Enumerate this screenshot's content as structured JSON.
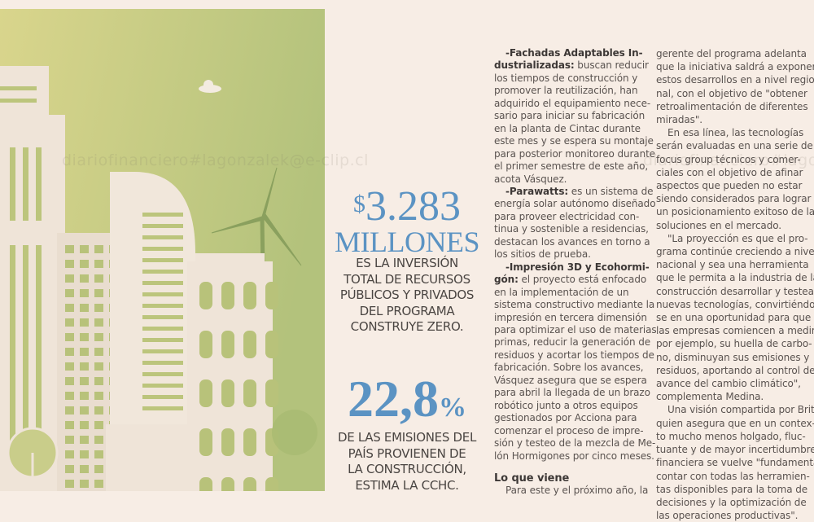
{
  "watermark": "diariofinanciero#lagonzalek@e-clip.cl",
  "illustration": {
    "colors": {
      "background_light": "#d9d58c",
      "background_dark": "#b3c27c",
      "buildings": "#efe4d8",
      "windows": "#b8c27a"
    }
  },
  "stats": [
    {
      "currency": "$",
      "value": "3.283",
      "unit": "MILLONES",
      "caption": [
        "ES LA INVERSIÓN",
        "TOTAL DE RECURSOS",
        "PÚBLICOS Y PRIVADOS",
        "DEL PROGRAMA",
        "CONSTRUYE ZERO."
      ]
    },
    {
      "value": "22,8",
      "unit": "%",
      "caption": [
        "DE LAS EMISIONES DEL",
        "PAÍS PROVIENEN DE",
        "LA CONSTRUCCIÓN,",
        "ESTIMA LA CCHC."
      ]
    }
  ],
  "accent_color": "#5b93c3",
  "columns": [
    [
      {
        "b": "-Fachadas Adaptables In-",
        "t": "",
        "indent": true
      },
      {
        "b": "dustrializadas:",
        "t": " buscan reducir"
      },
      {
        "t": "los tiempos de construcción y"
      },
      {
        "t": "promover la reutilización, han"
      },
      {
        "t": "adquirido el equipamiento nece-"
      },
      {
        "t": "sario para iniciar su fabricación"
      },
      {
        "t": "en la planta de Cintac durante"
      },
      {
        "t": "este mes y se espera su montaje"
      },
      {
        "t": "para posterior monitoreo durante"
      },
      {
        "t": "el primer semestre de este año,"
      },
      {
        "t": "acota Vásquez."
      },
      {
        "b": "-Parawatts:",
        "t": " es un sistema de",
        "indent": true
      },
      {
        "t": "energía solar autónomo diseñado"
      },
      {
        "t": "para proveer electricidad con-"
      },
      {
        "t": "tinua y sostenible a residencias,"
      },
      {
        "t": "destacan los avances en torno a"
      },
      {
        "t": "los sitios de prueba."
      },
      {
        "b": "-Impresión 3D y Ecohormi-",
        "t": "",
        "indent": true
      },
      {
        "b": "gón:",
        "t": " el proyecto está enfocado"
      },
      {
        "t": "en la implementación de un"
      },
      {
        "t": "sistema constructivo mediante la"
      },
      {
        "t": "impresión en tercera dimensión"
      },
      {
        "t": "para optimizar el uso de materias"
      },
      {
        "t": "primas, reducir la generación de"
      },
      {
        "t": "residuos y acortar los tiempos de"
      },
      {
        "t": "fabricación. Sobre los avances,"
      },
      {
        "t": "Vásquez asegura que se espera"
      },
      {
        "t": "para abril la llegada de un brazo"
      },
      {
        "t": "robótico junto a otros equipos"
      },
      {
        "t": "gestionados por Acciona para"
      },
      {
        "t": "comenzar el proceso de impre-"
      },
      {
        "t": "sión y testeo de la mezcla de Me-"
      },
      {
        "t": "lón Hormigones por cinco meses."
      },
      {
        "sub": "Lo que viene"
      },
      {
        "t": "Para este y el próximo año, la",
        "indent": true
      }
    ],
    [
      {
        "t": "gerente del programa adelanta"
      },
      {
        "t": "que la iniciativa saldrá a exponer"
      },
      {
        "t": "estos desarrollos en a nivel regio-"
      },
      {
        "t": "nal, con el objetivo de \"obtener"
      },
      {
        "t": "retroalimentación de diferentes"
      },
      {
        "t": "miradas\"."
      },
      {
        "t": "En esa línea, las tecnologías",
        "indent": true
      },
      {
        "t": "serán evaluadas en una serie de"
      },
      {
        "t": "focus group técnicos y comer-"
      },
      {
        "t": "ciales con el objetivo de afinar"
      },
      {
        "t": "aspectos que pueden no estar"
      },
      {
        "t": "siendo considerados para lograr"
      },
      {
        "t": "un posicionamiento exitoso de las"
      },
      {
        "t": "soluciones en el mercado."
      },
      {
        "t": "\"La proyección es que el pro-",
        "indent": true
      },
      {
        "t": "grama continúe creciendo a nivel"
      },
      {
        "t": "nacional y sea una herramienta"
      },
      {
        "t": "que le permita a la industria de la"
      },
      {
        "t": "construcción desarrollar y testear"
      },
      {
        "t": "nuevas tecnologías, convirtiéndo-"
      },
      {
        "t": "se en una oportunidad para que"
      },
      {
        "t": "las empresas comiencen a medir,"
      },
      {
        "t": "por ejemplo, su huella de carbo-"
      },
      {
        "t": "no, disminuyan sus emisiones y"
      },
      {
        "t": "residuos, aportando al control del"
      },
      {
        "t": "avance del cambio climático\","
      },
      {
        "t": "complementa Medina."
      },
      {
        "t": "Una visión compartida por Brito,",
        "indent": true
      },
      {
        "t": "quien asegura que en un contex-"
      },
      {
        "t": "to mucho menos holgado, fluc-"
      },
      {
        "t": "tuante y de mayor incertidumbre"
      },
      {
        "t": "financiera se vuelve \"fundamental"
      },
      {
        "t": "contar con todas las herramien-"
      },
      {
        "t": "tas disponibles para la toma de"
      },
      {
        "t": "decisiones y la optimización de"
      },
      {
        "t": "las operaciones productivas\"."
      }
    ]
  ]
}
